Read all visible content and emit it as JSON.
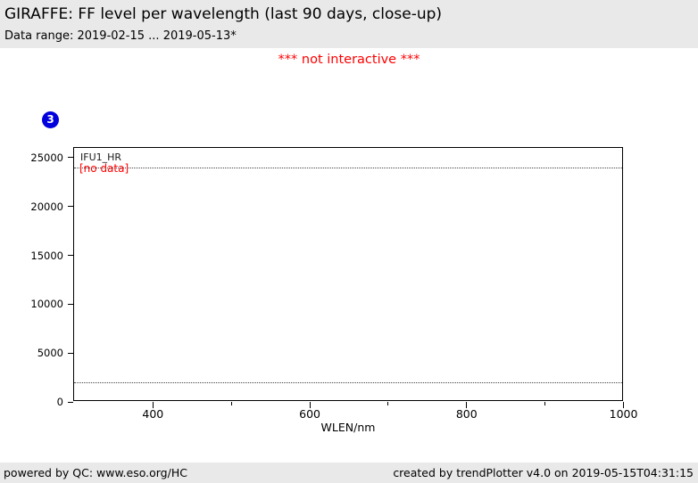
{
  "header": {
    "title": "GIRAFFE: FF level per wavelength (last 90 days, close-up)",
    "subtitle": "Data range: 2019-02-15 ... 2019-05-13*"
  },
  "notice": "*** not interactive ***",
  "badge": {
    "label": "3"
  },
  "plot_annotations": {
    "series_label": "IFU1_HR",
    "no_data": "[no data]"
  },
  "chart_data": {
    "type": "line",
    "title": "GIRAFFE: FF level per wavelength (last 90 days, close-up)",
    "xlabel": "WLEN/nm",
    "ylabel": "",
    "xlim": [
      299.5,
      1000.5
    ],
    "ylim": [
      0,
      26000
    ],
    "x_ticks": [
      400,
      600,
      800,
      1000
    ],
    "x_minor_ticks": [
      500,
      700,
      900
    ],
    "y_ticks": [
      0,
      5000,
      10000,
      15000,
      20000,
      25000
    ],
    "series": [
      {
        "name": "IFU1_HR",
        "x": [],
        "values": [],
        "note": "[no data]"
      }
    ],
    "thresholds": [
      24000,
      2000
    ],
    "grid": false,
    "legend_position": "top-left"
  },
  "footer": {
    "left": "powered by QC: www.eso.org/HC",
    "right": "created by trendPlotter v4.0 on 2019-05-15T04:31:15"
  },
  "colors": {
    "header_bg": "#e9e9e9",
    "footer_bg": "#e9e9e9",
    "alert_red": "#ff0000",
    "badge_blue": "#0000dd",
    "axis_black": "#000000"
  }
}
